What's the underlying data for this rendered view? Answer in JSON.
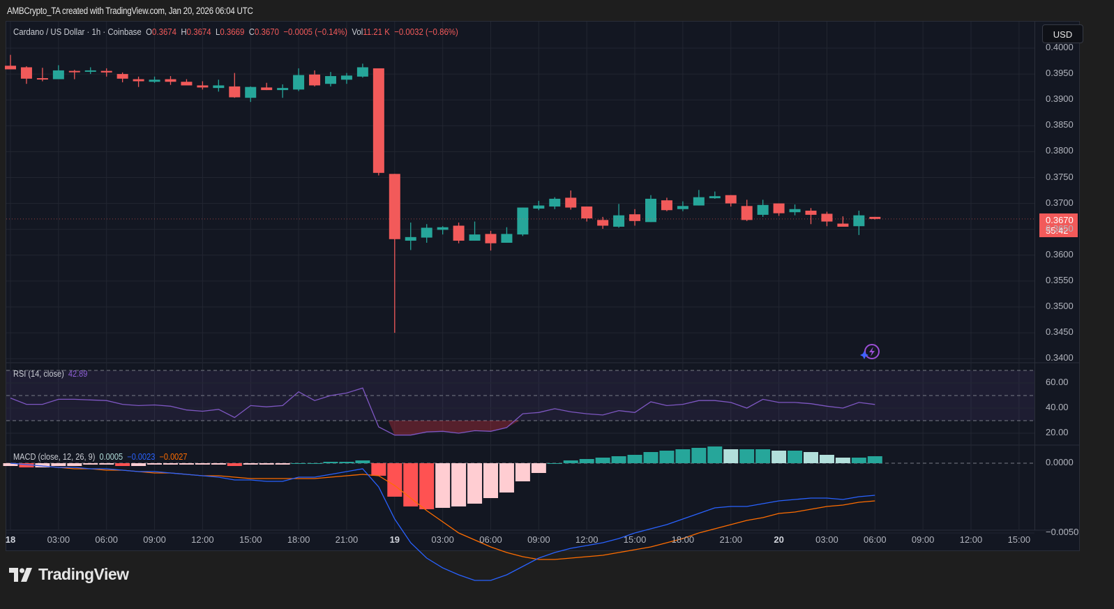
{
  "caption": "AMBCrypto_TA created with TradingView.com, Jan 20, 2026 06:04 UTC",
  "legend": {
    "symbol": "Cardano / US Dollar · 1h · Coinbase",
    "o_label": "O",
    "o": "0.3674",
    "h_label": "H",
    "h": "0.3674",
    "l_label": "L",
    "l": "0.3669",
    "c_label": "C",
    "c": "0.3670",
    "change": "−0.0005 (−0.14%)",
    "vol_label": "Vol",
    "vol": "11.21 K",
    "vol_change": "−0.0032 (−0.86%)"
  },
  "currency_button": "USD",
  "last_price": {
    "price": "0.3670",
    "countdown": "55:42"
  },
  "rsi_legend": {
    "label": "RSI (14, close)",
    "value": "42.89"
  },
  "macd_legend": {
    "label": "MACD (close, 12, 26, 9)",
    "hist": "0.0005",
    "macd": "−0.0023",
    "signal": "−0.0027"
  },
  "brand": "TradingView",
  "colors": {
    "up": "#26a69a",
    "down": "#f25a5a",
    "rsi": "#7e57c2",
    "macd": "#2962ff",
    "signal": "#ff6d00",
    "hist_up_strong": "#26a69a",
    "hist_up_weak": "#b2dfdb",
    "hist_down_strong": "#ff5252",
    "hist_down_weak": "#ffcdd2",
    "bg": "#131722"
  },
  "chart_data": [
    {
      "type": "candlestick",
      "title": "Cardano / US Dollar · 1h · Coinbase",
      "ylabel": "USD",
      "ylim": [
        0.34,
        0.4
      ],
      "yticks": [
        "0.4000",
        "0.3950",
        "0.3900",
        "0.3850",
        "0.3800",
        "0.3750",
        "0.3700",
        "0.3650",
        "0.3600",
        "0.3550",
        "0.3500",
        "0.3450",
        "0.3400"
      ],
      "xticks": [
        "18",
        "03:00",
        "06:00",
        "09:00",
        "12:00",
        "15:00",
        "18:00",
        "21:00",
        "19",
        "03:00",
        "06:00",
        "09:00",
        "12:00",
        "15:00",
        "18:00",
        "21:00",
        "20",
        "03:00",
        "06:00",
        "09:00",
        "12:00",
        "15:00"
      ],
      "grid": true,
      "candles": [
        {
          "o": 0.3966,
          "h": 0.3987,
          "l": 0.3961,
          "c": 0.3959
        },
        {
          "o": 0.3963,
          "h": 0.3965,
          "l": 0.3931,
          "c": 0.3941
        },
        {
          "o": 0.3942,
          "h": 0.3962,
          "l": 0.3936,
          "c": 0.394
        },
        {
          "o": 0.394,
          "h": 0.3967,
          "l": 0.394,
          "c": 0.3957
        },
        {
          "o": 0.3956,
          "h": 0.3958,
          "l": 0.394,
          "c": 0.3955
        },
        {
          "o": 0.3955,
          "h": 0.3963,
          "l": 0.395,
          "c": 0.3957
        },
        {
          "o": 0.3956,
          "h": 0.3961,
          "l": 0.3945,
          "c": 0.3953
        },
        {
          "o": 0.395,
          "h": 0.3953,
          "l": 0.3934,
          "c": 0.3941
        },
        {
          "o": 0.394,
          "h": 0.3945,
          "l": 0.3925,
          "c": 0.3936
        },
        {
          "o": 0.3935,
          "h": 0.3945,
          "l": 0.3933,
          "c": 0.3939
        },
        {
          "o": 0.394,
          "h": 0.3946,
          "l": 0.3929,
          "c": 0.3935
        },
        {
          "o": 0.3935,
          "h": 0.394,
          "l": 0.3933,
          "c": 0.3928
        },
        {
          "o": 0.3928,
          "h": 0.3936,
          "l": 0.392,
          "c": 0.3924
        },
        {
          "o": 0.3923,
          "h": 0.3939,
          "l": 0.3916,
          "c": 0.3928
        },
        {
          "o": 0.3926,
          "h": 0.3952,
          "l": 0.3904,
          "c": 0.3905
        },
        {
          "o": 0.3904,
          "h": 0.3926,
          "l": 0.3896,
          "c": 0.3925
        },
        {
          "o": 0.3924,
          "h": 0.3933,
          "l": 0.3919,
          "c": 0.3919
        },
        {
          "o": 0.3919,
          "h": 0.393,
          "l": 0.3904,
          "c": 0.3923
        },
        {
          "o": 0.392,
          "h": 0.3961,
          "l": 0.3917,
          "c": 0.3948
        },
        {
          "o": 0.3949,
          "h": 0.3957,
          "l": 0.3926,
          "c": 0.3928
        },
        {
          "o": 0.3931,
          "h": 0.3954,
          "l": 0.3926,
          "c": 0.3946
        },
        {
          "o": 0.3939,
          "h": 0.3952,
          "l": 0.3931,
          "c": 0.3947
        },
        {
          "o": 0.3945,
          "h": 0.397,
          "l": 0.3943,
          "c": 0.3963
        },
        {
          "o": 0.3961,
          "h": 0.3961,
          "l": 0.3754,
          "c": 0.3759
        },
        {
          "o": 0.3757,
          "h": 0.3757,
          "l": 0.345,
          "c": 0.3631
        },
        {
          "o": 0.3628,
          "h": 0.3663,
          "l": 0.361,
          "c": 0.3635
        },
        {
          "o": 0.3634,
          "h": 0.366,
          "l": 0.3624,
          "c": 0.3653
        },
        {
          "o": 0.3649,
          "h": 0.3656,
          "l": 0.364,
          "c": 0.3654
        },
        {
          "o": 0.3657,
          "h": 0.3663,
          "l": 0.3623,
          "c": 0.3628
        },
        {
          "o": 0.3628,
          "h": 0.3665,
          "l": 0.3628,
          "c": 0.364
        },
        {
          "o": 0.3641,
          "h": 0.3647,
          "l": 0.3609,
          "c": 0.3623
        },
        {
          "o": 0.3624,
          "h": 0.3654,
          "l": 0.3624,
          "c": 0.3641
        },
        {
          "o": 0.364,
          "h": 0.3692,
          "l": 0.3637,
          "c": 0.3692
        },
        {
          "o": 0.369,
          "h": 0.3705,
          "l": 0.3687,
          "c": 0.3696
        },
        {
          "o": 0.3694,
          "h": 0.3712,
          "l": 0.3689,
          "c": 0.3709
        },
        {
          "o": 0.3711,
          "h": 0.3725,
          "l": 0.3688,
          "c": 0.3692
        },
        {
          "o": 0.3694,
          "h": 0.3694,
          "l": 0.3665,
          "c": 0.3671
        },
        {
          "o": 0.3668,
          "h": 0.3674,
          "l": 0.3651,
          "c": 0.3657
        },
        {
          "o": 0.3655,
          "h": 0.3699,
          "l": 0.3653,
          "c": 0.3677
        },
        {
          "o": 0.3679,
          "h": 0.3689,
          "l": 0.3657,
          "c": 0.3666
        },
        {
          "o": 0.3664,
          "h": 0.3716,
          "l": 0.3664,
          "c": 0.3709
        },
        {
          "o": 0.3706,
          "h": 0.3711,
          "l": 0.3685,
          "c": 0.3687
        },
        {
          "o": 0.3689,
          "h": 0.3704,
          "l": 0.3685,
          "c": 0.3695
        },
        {
          "o": 0.3696,
          "h": 0.3726,
          "l": 0.3696,
          "c": 0.3712
        },
        {
          "o": 0.371,
          "h": 0.3723,
          "l": 0.3709,
          "c": 0.3714
        },
        {
          "o": 0.3716,
          "h": 0.3716,
          "l": 0.3694,
          "c": 0.37
        },
        {
          "o": 0.3695,
          "h": 0.3707,
          "l": 0.3666,
          "c": 0.3668
        },
        {
          "o": 0.3678,
          "h": 0.3707,
          "l": 0.3674,
          "c": 0.3697
        },
        {
          "o": 0.37,
          "h": 0.37,
          "l": 0.3676,
          "c": 0.3681
        },
        {
          "o": 0.3683,
          "h": 0.3698,
          "l": 0.3677,
          "c": 0.3689
        },
        {
          "o": 0.3686,
          "h": 0.3691,
          "l": 0.366,
          "c": 0.3678
        },
        {
          "o": 0.368,
          "h": 0.3684,
          "l": 0.3656,
          "c": 0.3665
        },
        {
          "o": 0.3661,
          "h": 0.3675,
          "l": 0.366,
          "c": 0.3655
        },
        {
          "o": 0.3656,
          "h": 0.3686,
          "l": 0.3639,
          "c": 0.3677
        },
        {
          "o": 0.3674,
          "h": 0.3674,
          "l": 0.3669,
          "c": 0.367
        }
      ]
    },
    {
      "type": "line",
      "title": "RSI (14, close)",
      "ylim": [
        10,
        75
      ],
      "yticks": [
        "60.00",
        "40.00",
        "20.00"
      ],
      "bands": {
        "upper": 70,
        "middle": 50,
        "lower": 30
      },
      "values": [
        48,
        43,
        43,
        47,
        47,
        46.5,
        46,
        43,
        42,
        42.5,
        41.5,
        38.5,
        37.5,
        39,
        32.5,
        42,
        41,
        42,
        53,
        46,
        50,
        52,
        56,
        25,
        18.5,
        18.5,
        21,
        21.5,
        20,
        22,
        21.5,
        24.5,
        35.5,
        36.5,
        39.5,
        37,
        35.5,
        34.5,
        38,
        36.5,
        45,
        42,
        43,
        46,
        46,
        44.5,
        40,
        47,
        44.5,
        44.5,
        43.5,
        41.5,
        40,
        44.5,
        42.89
      ],
      "last": 42.89
    },
    {
      "type": "bar+line",
      "title": "MACD (close, 12, 26, 9)",
      "ylim": [
        -0.0085,
        0.0008
      ],
      "yticks": [
        "0.0000",
        "−0.0050"
      ],
      "histogram": [
        -0.0002,
        -0.0003,
        -0.0003,
        -0.0002,
        -0.0002,
        -0.0001,
        -0.0001,
        -0.0002,
        -0.0002,
        -0.0001,
        -0.0001,
        -0.0001,
        -0.0001,
        -0.0001,
        -0.0002,
        -0.0001,
        -0.0001,
        -0.0001,
        0.0,
        0.0,
        0.0001,
        0.0001,
        0.0002,
        -0.0009,
        -0.0024,
        -0.0031,
        -0.0033,
        -0.0032,
        -0.0031,
        -0.0029,
        -0.0025,
        -0.0021,
        -0.0013,
        -0.0007,
        0.0,
        0.0002,
        0.0003,
        0.0004,
        0.0005,
        0.0006,
        0.0008,
        0.0009,
        0.001,
        0.0011,
        0.0012,
        0.001,
        0.001,
        0.001,
        0.0009,
        0.0009,
        0.0008,
        0.0006,
        0.0004,
        0.0004,
        0.0005
      ],
      "macd": [
        0.0,
        -0.0001,
        -0.0002,
        -0.0003,
        -0.0003,
        -0.0004,
        -0.0004,
        -0.0005,
        -0.0006,
        -0.0006,
        -0.0007,
        -0.0008,
        -0.0009,
        -0.001,
        -0.0012,
        -0.0012,
        -0.0013,
        -0.0013,
        -0.001,
        -0.001,
        -0.0008,
        -0.0006,
        -0.0004,
        -0.0017,
        -0.004,
        -0.0057,
        -0.0068,
        -0.0075,
        -0.008,
        -0.0084,
        -0.0084,
        -0.008,
        -0.0074,
        -0.0068,
        -0.0064,
        -0.0061,
        -0.0059,
        -0.0057,
        -0.0054,
        -0.005,
        -0.0047,
        -0.0044,
        -0.004,
        -0.0036,
        -0.0032,
        -0.0031,
        -0.0031,
        -0.0029,
        -0.0027,
        -0.0026,
        -0.0025,
        -0.0025,
        -0.0026,
        -0.0024,
        -0.0023
      ],
      "signal": [
        0.0,
        -0.0001,
        -0.0002,
        -0.0003,
        -0.0004,
        -0.0004,
        -0.0005,
        -0.0005,
        -0.0006,
        -0.0007,
        -0.0007,
        -0.0008,
        -0.0009,
        -0.0009,
        -0.001,
        -0.0011,
        -0.0011,
        -0.0011,
        -0.0011,
        -0.0011,
        -0.001,
        -0.0009,
        -0.0008,
        -0.0009,
        -0.0016,
        -0.0025,
        -0.0034,
        -0.0042,
        -0.005,
        -0.0055,
        -0.006,
        -0.0064,
        -0.0067,
        -0.0069,
        -0.0069,
        -0.0068,
        -0.0067,
        -0.0066,
        -0.0064,
        -0.0062,
        -0.006,
        -0.0057,
        -0.0054,
        -0.005,
        -0.0047,
        -0.0044,
        -0.0041,
        -0.0039,
        -0.0036,
        -0.0035,
        -0.0033,
        -0.0031,
        -0.003,
        -0.0028,
        -0.0027
      ]
    }
  ]
}
